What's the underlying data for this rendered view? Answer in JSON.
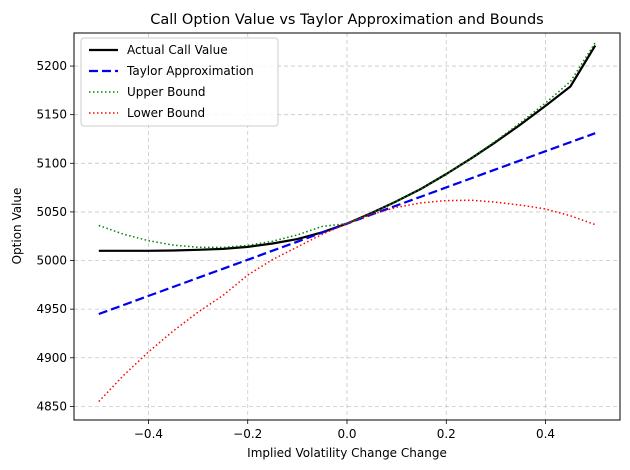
{
  "chart_data": {
    "type": "line",
    "title": "Call Option Value vs Taylor Approximation and Bounds",
    "xlabel": "Implied Volatility Change Change",
    "ylabel": "Option Value",
    "xlim": [
      -0.55,
      0.55
    ],
    "ylim": [
      4836,
      5234
    ],
    "xticks": [
      -0.4,
      -0.2,
      0.0,
      0.2,
      0.4
    ],
    "xtick_labels": [
      "−0.4",
      "−0.2",
      "0.0",
      "0.2",
      "0.4"
    ],
    "yticks": [
      4850,
      4900,
      4950,
      5000,
      5050,
      5100,
      5150,
      5200
    ],
    "ytick_labels": [
      "4850",
      "4900",
      "4950",
      "5000",
      "5050",
      "5100",
      "5150",
      "5200"
    ],
    "grid": true,
    "legend_position": "top-left",
    "x": [
      -0.5,
      -0.45,
      -0.4,
      -0.35,
      -0.3,
      -0.25,
      -0.2,
      -0.15,
      -0.1,
      -0.05,
      0.0,
      0.05,
      0.1,
      0.15,
      0.2,
      0.25,
      0.3,
      0.35,
      0.4,
      0.45,
      0.5
    ],
    "series": [
      {
        "name": "Actual Call Value",
        "color": "#000000",
        "style": "solid",
        "values": [
          5010,
          5010,
          5010,
          5010.3,
          5011,
          5012,
          5014,
          5017.5,
          5022,
          5029,
          5038,
          5049,
          5061,
          5074,
          5089,
          5105,
          5122,
          5140,
          5159,
          5179,
          5221
        ]
      },
      {
        "name": "Taylor Approximation",
        "color": "#0000ee",
        "style": "dashed",
        "values": [
          4945,
          4954.3,
          4963.6,
          4972.9,
          4982.2,
          4991.5,
          5000.8,
          5010.1,
          5019.4,
          5028.7,
          5038,
          5047.3,
          5056.6,
          5065.9,
          5075.2,
          5084.5,
          5093.8,
          5103.1,
          5112.4,
          5121.7,
          5131
        ]
      },
      {
        "name": "Upper Bound",
        "color": "#008000",
        "style": "dotted",
        "values": [
          5036,
          5027.1,
          5020.4,
          5015.9,
          5013.6,
          5013.5,
          5015.6,
          5019.9,
          5026.4,
          5035.1,
          5038,
          5049,
          5061,
          5074,
          5089,
          5105,
          5123,
          5142,
          5162,
          5184,
          5224
        ]
      },
      {
        "name": "Lower Bound",
        "color": "#ff0000",
        "style": "dotted",
        "values": [
          4855,
          4882,
          4906,
          4927.6,
          4947,
          4964,
          4985,
          5001,
          5014,
          5027,
          5038,
          5047.5,
          5054.7,
          5059.4,
          5061.6,
          5062,
          5060,
          5057,
          5053,
          5046,
          5037
        ]
      }
    ]
  }
}
